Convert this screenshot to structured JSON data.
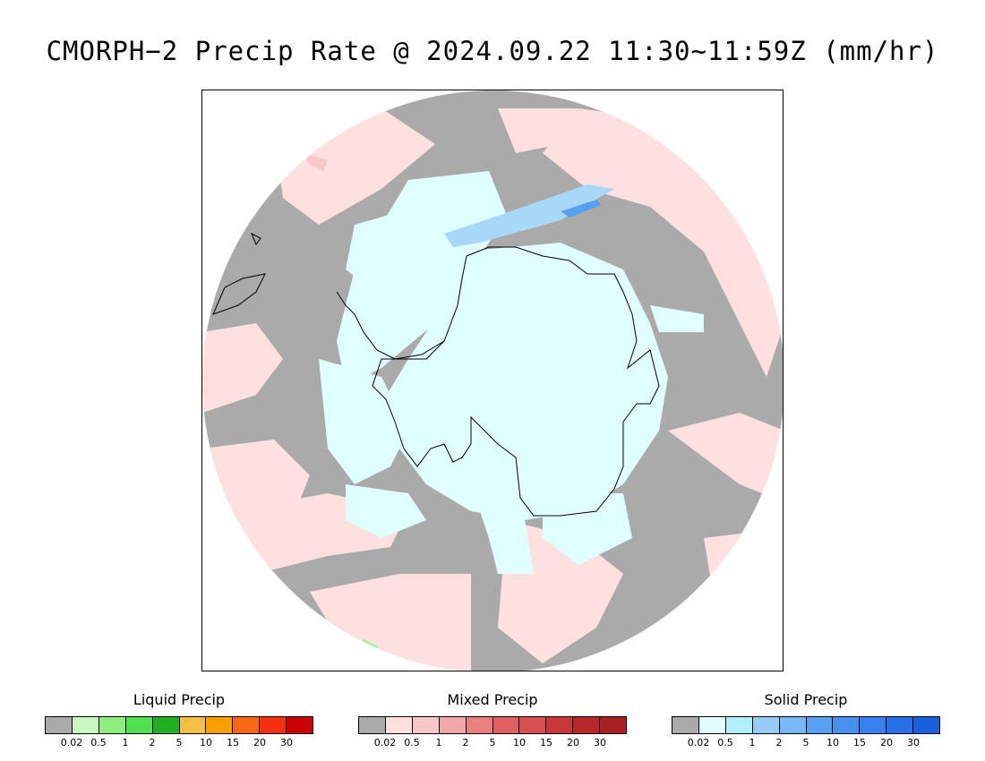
{
  "title": "CMORPH−2 Precip Rate @ 2024.09.22 11:30~11:59Z (mm/hr)",
  "map": {
    "projection": "south polar stereographic",
    "colors": {
      "no_data_gray": "#aaaaaa",
      "mixed_light": "#ffe0e0",
      "mixed_mid": "#f8c8c8",
      "solid_light": "#e0ffff",
      "solid_mid": "#a8d8f8",
      "solid_blue": "#5aa0f0",
      "liquid_light": "#a0f0a0",
      "coastline": "#000000"
    }
  },
  "legends": [
    {
      "title": "Liquid Precip",
      "colors": [
        "#aaaaaa",
        "#c8f8c0",
        "#90ee80",
        "#50e050",
        "#20b020",
        "#f8c040",
        "#f8a000",
        "#f86810",
        "#f83010",
        "#c80000"
      ],
      "ticks": [
        "0.02",
        "0.5",
        "1",
        "2",
        "5",
        "10",
        "15",
        "20",
        "30"
      ]
    },
    {
      "title": "Mixed Precip",
      "colors": [
        "#aaaaaa",
        "#ffe0e0",
        "#f8c8c8",
        "#f0a8a8",
        "#e88080",
        "#e06060",
        "#d85050",
        "#c83838",
        "#b82828",
        "#a82020"
      ],
      "ticks": [
        "0.02",
        "0.5",
        "1",
        "2",
        "5",
        "10",
        "15",
        "20",
        "30"
      ]
    },
    {
      "title": "Solid Precip",
      "colors": [
        "#aaaaaa",
        "#e0ffff",
        "#b0f0f8",
        "#98ccf8",
        "#78b8f8",
        "#5aa0f0",
        "#4890f0",
        "#3880f0",
        "#2870e8",
        "#1860d8"
      ],
      "ticks": [
        "0.02",
        "0.5",
        "1",
        "2",
        "5",
        "10",
        "15",
        "20",
        "30"
      ]
    }
  ]
}
